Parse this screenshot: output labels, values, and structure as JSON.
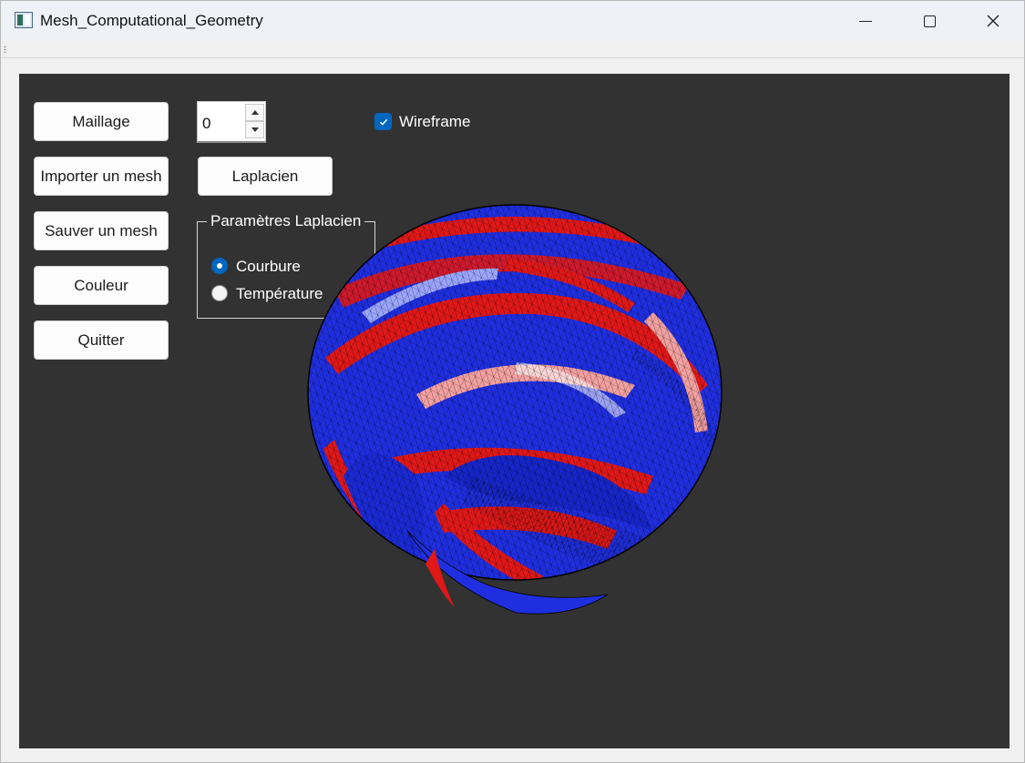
{
  "window": {
    "title": "Mesh_Computational_Geometry"
  },
  "buttons": {
    "maillage": "Maillage",
    "importer": "Importer un mesh",
    "sauver": "Sauver un mesh",
    "couleur": "Couleur",
    "quitter": "Quitter",
    "laplacien": "Laplacien"
  },
  "spinbox": {
    "value": "0"
  },
  "wireframe": {
    "label": "Wireframe",
    "checked": true
  },
  "laplacien_params": {
    "title": "Paramètres Laplacien",
    "options": [
      {
        "label": "Courbure",
        "selected": true
      },
      {
        "label": "Température",
        "selected": false
      }
    ]
  },
  "colors": {
    "viewport": "#323232",
    "accent": "#0067c0",
    "mesh_blue": "#1f2fe0",
    "mesh_red": "#e01818"
  },
  "icons": {
    "app": "app-icon",
    "minimize": "minimize-icon",
    "maximize": "maximize-icon",
    "close": "close-icon",
    "check": "check-icon",
    "spin_up": "arrow-up-icon",
    "spin_down": "arrow-down-icon"
  }
}
